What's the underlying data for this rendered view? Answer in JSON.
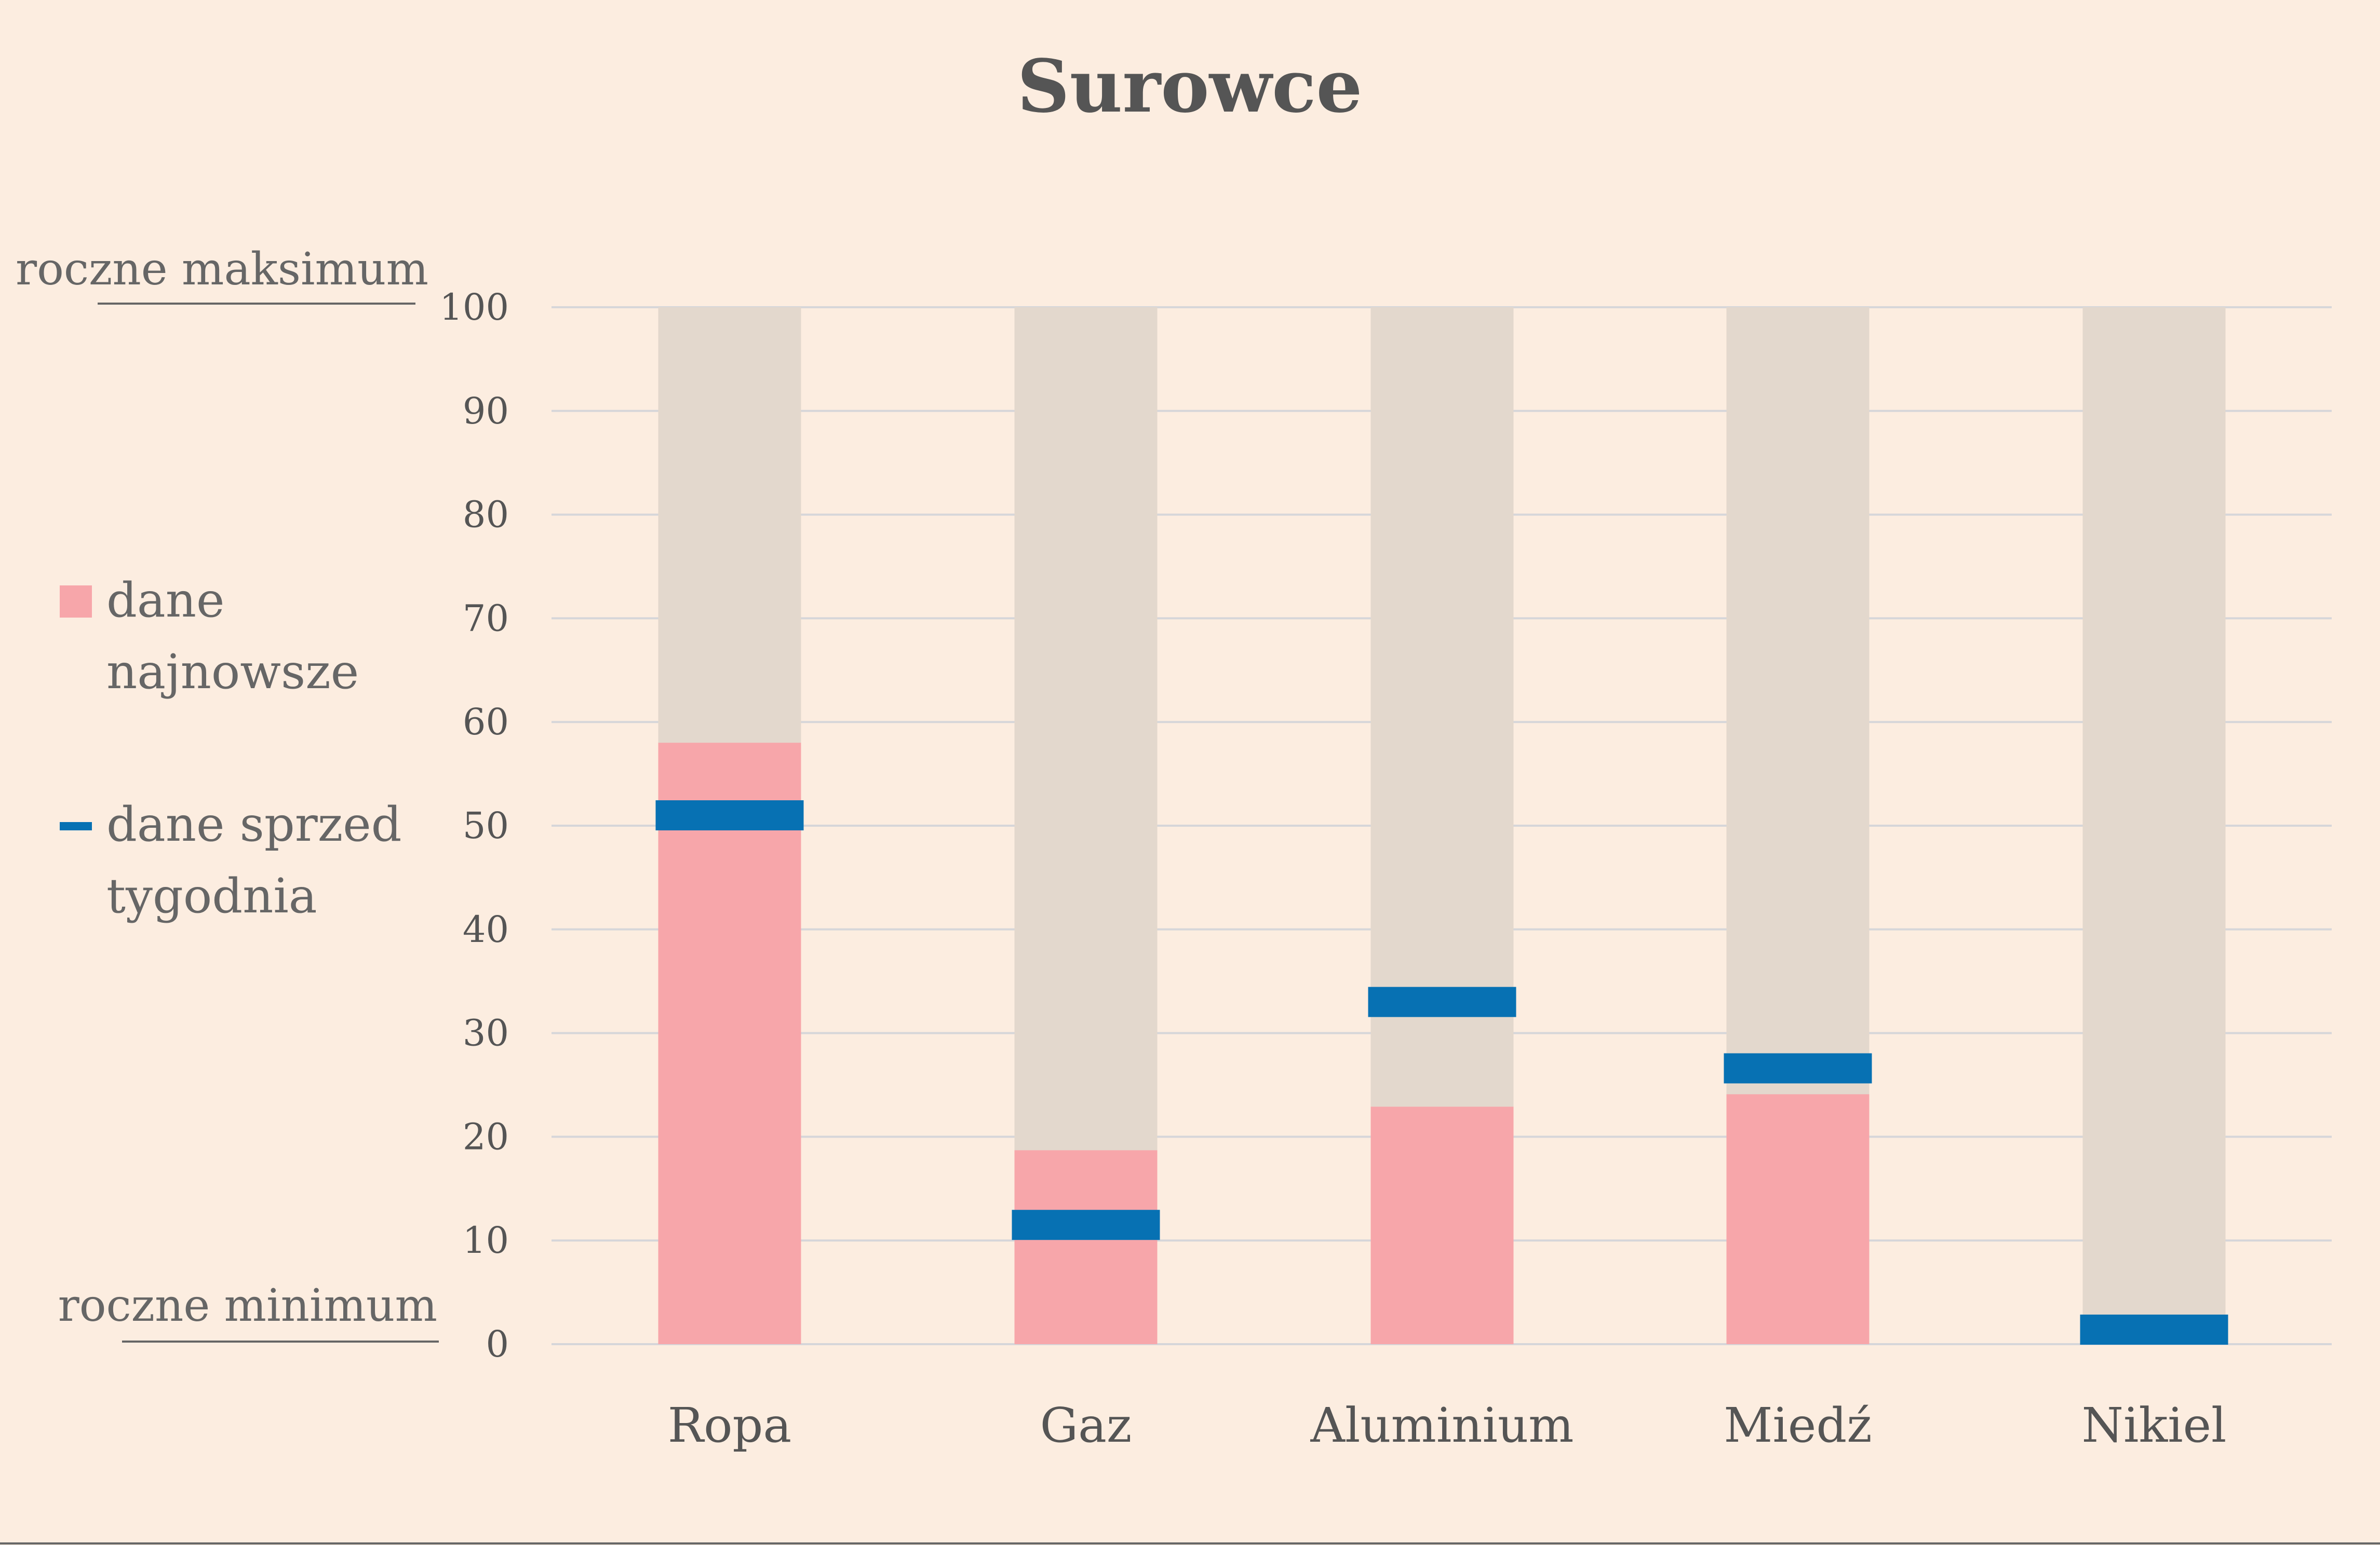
{
  "chart_data": {
    "type": "bar",
    "title": "Surowce",
    "categories": [
      "Ropa",
      "Gaz",
      "Aluminium",
      "Miedź",
      "Nikiel"
    ],
    "series": [
      {
        "name": "dane najnowsze",
        "values": [
          58,
          18.7,
          22.9,
          24.1,
          0
        ]
      },
      {
        "name": "dane sprzed tygodnia",
        "values": [
          51,
          11.5,
          33,
          26.6,
          1.4
        ]
      }
    ],
    "ylim": [
      0,
      100
    ],
    "yticks": [
      0,
      10,
      20,
      30,
      40,
      50,
      60,
      70,
      80,
      90,
      100
    ],
    "grid": true,
    "legend_position": "left",
    "axis_annotations": {
      "max_label": "roczne maksimum",
      "min_label": "roczne minimum"
    },
    "legend": {
      "latest_lines": [
        "dane",
        "najnowsze"
      ],
      "prev_lines": [
        "dane sprzed",
        "tygodnia"
      ]
    },
    "colors": {
      "background": "#fcede0",
      "range_bar": "#e3d8cd",
      "latest": "#f7a6aa",
      "previous": "#0771b3",
      "grid": "#d6d6d9",
      "text": "#555555"
    }
  }
}
